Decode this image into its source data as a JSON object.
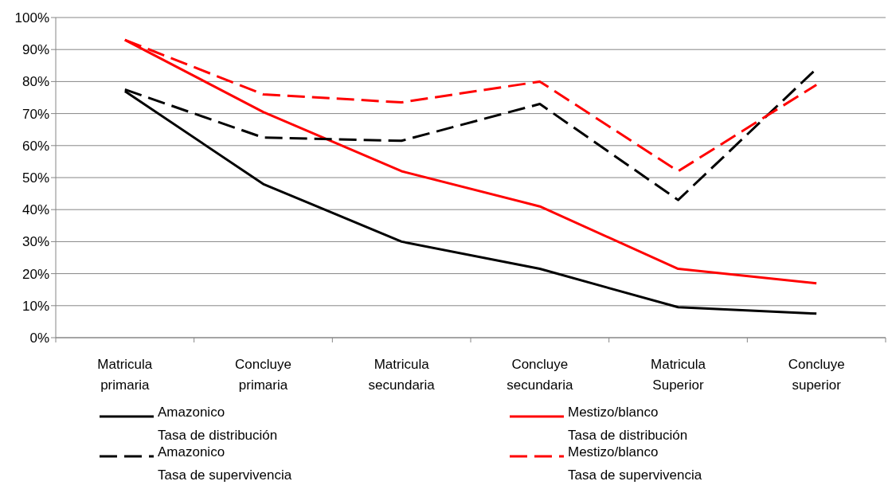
{
  "chart_data": {
    "type": "line",
    "categories": [
      "Matricula\nprimaria",
      "Concluye\nprimaria",
      "Matricula\nsecundaria",
      "Concluye\nsecundaria",
      "Matricula\nSuperior",
      "Concluye\nsuperior"
    ],
    "ylim": [
      0,
      100
    ],
    "yticks": [
      {
        "value": 0,
        "label": "0%"
      },
      {
        "value": 10,
        "label": "10%"
      },
      {
        "value": 20,
        "label": "20%"
      },
      {
        "value": 30,
        "label": "30%"
      },
      {
        "value": 40,
        "label": "40%"
      },
      {
        "value": 50,
        "label": "50%"
      },
      {
        "value": 60,
        "label": "60%"
      },
      {
        "value": 70,
        "label": "70%"
      },
      {
        "value": 80,
        "label": "80%"
      },
      {
        "value": 90,
        "label": "90%"
      },
      {
        "value": 100,
        "label": "100%"
      }
    ],
    "grid": "y",
    "legend": "bottom",
    "marker": "none",
    "series": [
      {
        "name": "Amazonico\nTasa de distribución",
        "color": "#000000",
        "line_style": "solid",
        "values": [
          77,
          48,
          30,
          21.5,
          9.5,
          7.5
        ]
      },
      {
        "name": "Mestizo/blanco\nTasa de distribución",
        "color": "#ff0000",
        "line_style": "solid",
        "values": [
          93,
          70.5,
          52,
          41,
          21.5,
          17
        ]
      },
      {
        "name": "Amazonico\nTasa de supervivencia",
        "color": "#000000",
        "line_style": "dashed",
        "values": [
          77.5,
          62.5,
          61.5,
          73,
          43,
          84
        ]
      },
      {
        "name": "Mestizo/blanco\nTasa de supervivencia",
        "color": "#ff0000",
        "line_style": "dashed",
        "values": [
          93,
          76,
          73.5,
          80,
          52,
          79
        ]
      }
    ]
  }
}
